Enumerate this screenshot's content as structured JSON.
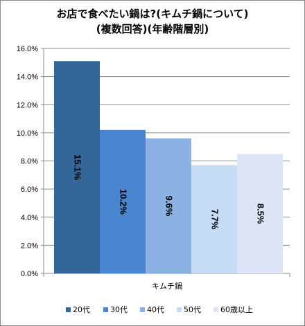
{
  "chart_data": {
    "type": "bar",
    "title": [
      "お店で食べたい鍋は?(キムチ鍋について)",
      "(複数回答)(年齢階層別)"
    ],
    "categories": [
      "キムチ鍋"
    ],
    "series": [
      {
        "name": "20代",
        "values": [
          15.1
        ],
        "color": "#336699"
      },
      {
        "name": "30代",
        "values": [
          10.2
        ],
        "color": "#4a86cf"
      },
      {
        "name": "40代",
        "values": [
          9.6
        ],
        "color": "#8cb1e3"
      },
      {
        "name": "50代",
        "values": [
          7.7
        ],
        "color": "#c5dcf4"
      },
      {
        "name": "60歳以上",
        "values": [
          8.5
        ],
        "color": "#dde6f6"
      }
    ],
    "data_labels": [
      "15.1%",
      "10.2%",
      "9.6%",
      "7.7%",
      "8.5%"
    ],
    "ylim": [
      0,
      16
    ],
    "yticks": [
      0,
      2,
      4,
      6,
      8,
      10,
      12,
      14,
      16
    ],
    "ytick_labels": [
      "0.0%",
      "2.0%",
      "4.0%",
      "6.0%",
      "8.0%",
      "10.0%",
      "12.0%",
      "14.0%",
      "16.0%"
    ],
    "grid": true,
    "legend": "bottom"
  }
}
